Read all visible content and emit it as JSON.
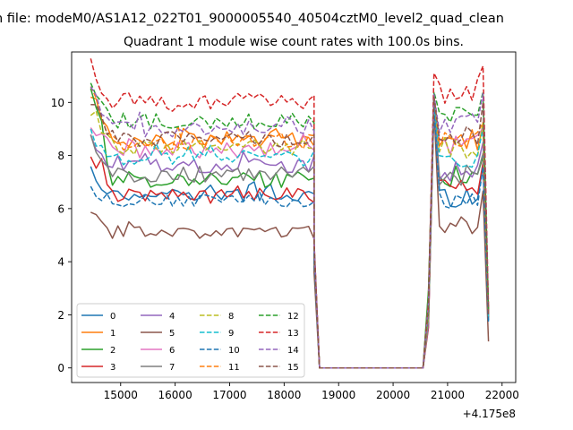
{
  "figure": {
    "suptitle": "n file: modeM0/AS1A12_022T01_9000005540_40504cztM0_level2_quad_clean"
  },
  "chart_data": {
    "type": "line",
    "title": "Quadrant 1 module wise count rates with 100.0s bins.",
    "xlabel": "",
    "ylabel": "",
    "x_offset_label": "+4.175e8",
    "xlim": [
      14100,
      22250
    ],
    "ylim": [
      -0.55,
      11.9
    ],
    "xticks": [
      15000,
      16000,
      17000,
      18000,
      19000,
      20000,
      21000,
      22000
    ],
    "xtick_labels": [
      "15000",
      "16000",
      "17000",
      "18000",
      "19000",
      "20000",
      "21000",
      "22000"
    ],
    "yticks": [
      0,
      2,
      4,
      6,
      8,
      10
    ],
    "ytick_labels": [
      "0",
      "2",
      "4",
      "6",
      "8",
      "10"
    ],
    "grid": false,
    "legend": {
      "placement": "lower-left",
      "columns": 4
    },
    "segment_x": {
      "seg1_start": 14450,
      "seg1_step": 100,
      "seg1_count": 42,
      "drop": [
        18550,
        18650
      ],
      "flat": [
        18650,
        20550
      ],
      "seg2": [
        20550,
        20650,
        20750,
        20850,
        20950,
        21050,
        21150,
        21250,
        21350,
        21450,
        21550,
        21650,
        21750
      ]
    },
    "series": [
      {
        "name": "0",
        "color": "#1f77b4",
        "dashed": false,
        "base1": 6.5,
        "start1": 7.4,
        "amp": 0.25,
        "end_drop": 4.2,
        "base2": 6.4,
        "peak2": 10.3,
        "last": 1.8
      },
      {
        "name": "1",
        "color": "#ff7f0e",
        "dashed": false,
        "base1": 8.6,
        "start1": 10.3,
        "amp": 0.3,
        "end_drop": 4.6,
        "base2": 8.6,
        "peak2": 10.2,
        "last": 2.0
      },
      {
        "name": "2",
        "color": "#2ca02c",
        "dashed": false,
        "base1": 7.1,
        "start1": 10.6,
        "amp": 0.3,
        "end_drop": 4.4,
        "base2": 7.2,
        "peak2": 10.0,
        "last": 2.1
      },
      {
        "name": "3",
        "color": "#d62728",
        "dashed": false,
        "base1": 6.5,
        "start1": 8.0,
        "amp": 0.3,
        "end_drop": 4.3,
        "base2": 6.8,
        "peak2": 10.1,
        "last": 1.9
      },
      {
        "name": "4",
        "color": "#9467bd",
        "dashed": false,
        "base1": 7.6,
        "start1": 8.8,
        "amp": 0.3,
        "end_drop": 4.5,
        "base2": 7.4,
        "peak2": 10.0,
        "last": 2.0
      },
      {
        "name": "5",
        "color": "#8c564b",
        "dashed": false,
        "base1": 5.1,
        "start1": 5.85,
        "amp": 0.25,
        "end_drop": 3.6,
        "base2": 5.4,
        "peak2": 9.8,
        "last": 1.0
      },
      {
        "name": "6",
        "color": "#e377c2",
        "dashed": false,
        "base1": 8.2,
        "start1": 9.0,
        "amp": 0.3,
        "end_drop": 4.6,
        "base2": 8.4,
        "peak2": 10.1,
        "last": 2.0
      },
      {
        "name": "7",
        "color": "#7f7f7f",
        "dashed": false,
        "base1": 7.3,
        "start1": 8.7,
        "amp": 0.3,
        "end_drop": 4.4,
        "base2": 7.3,
        "peak2": 9.9,
        "last": 1.9
      },
      {
        "name": "8",
        "color": "#bcbd22",
        "dashed": true,
        "base1": 8.3,
        "start1": 9.4,
        "amp": 0.3,
        "end_drop": 4.5,
        "base2": 8.3,
        "peak2": 10.0,
        "last": 2.0
      },
      {
        "name": "9",
        "color": "#17becf",
        "dashed": true,
        "base1": 7.9,
        "start1": 8.5,
        "amp": 0.3,
        "end_drop": 4.4,
        "base2": 7.9,
        "peak2": 10.1,
        "last": 1.8
      },
      {
        "name": "10",
        "color": "#1f77b4",
        "dashed": true,
        "base1": 6.3,
        "start1": 6.7,
        "amp": 0.25,
        "end_drop": 4.1,
        "base2": 6.3,
        "peak2": 9.8,
        "last": 1.7
      },
      {
        "name": "11",
        "color": "#ff7f0e",
        "dashed": true,
        "base1": 8.5,
        "start1": 10.4,
        "amp": 0.3,
        "end_drop": 4.6,
        "base2": 8.6,
        "peak2": 10.3,
        "last": 2.1
      },
      {
        "name": "12",
        "color": "#2ca02c",
        "dashed": true,
        "base1": 9.3,
        "start1": 10.5,
        "amp": 0.3,
        "end_drop": 4.7,
        "base2": 9.6,
        "peak2": 10.4,
        "last": 2.2
      },
      {
        "name": "13",
        "color": "#d62728",
        "dashed": true,
        "base1": 10.0,
        "start1": 11.35,
        "amp": 0.35,
        "end_drop": 4.8,
        "base2": 10.4,
        "peak2": 11.1,
        "last": 2.3
      },
      {
        "name": "14",
        "color": "#9467bd",
        "dashed": true,
        "base1": 9.0,
        "start1": 10.3,
        "amp": 0.3,
        "end_drop": 4.7,
        "base2": 9.2,
        "peak2": 10.3,
        "last": 2.1
      },
      {
        "name": "15",
        "color": "#8c564b",
        "dashed": true,
        "base1": 8.6,
        "start1": 10.2,
        "amp": 0.3,
        "end_drop": 4.6,
        "base2": 8.7,
        "peak2": 10.2,
        "last": 2.0
      }
    ]
  }
}
